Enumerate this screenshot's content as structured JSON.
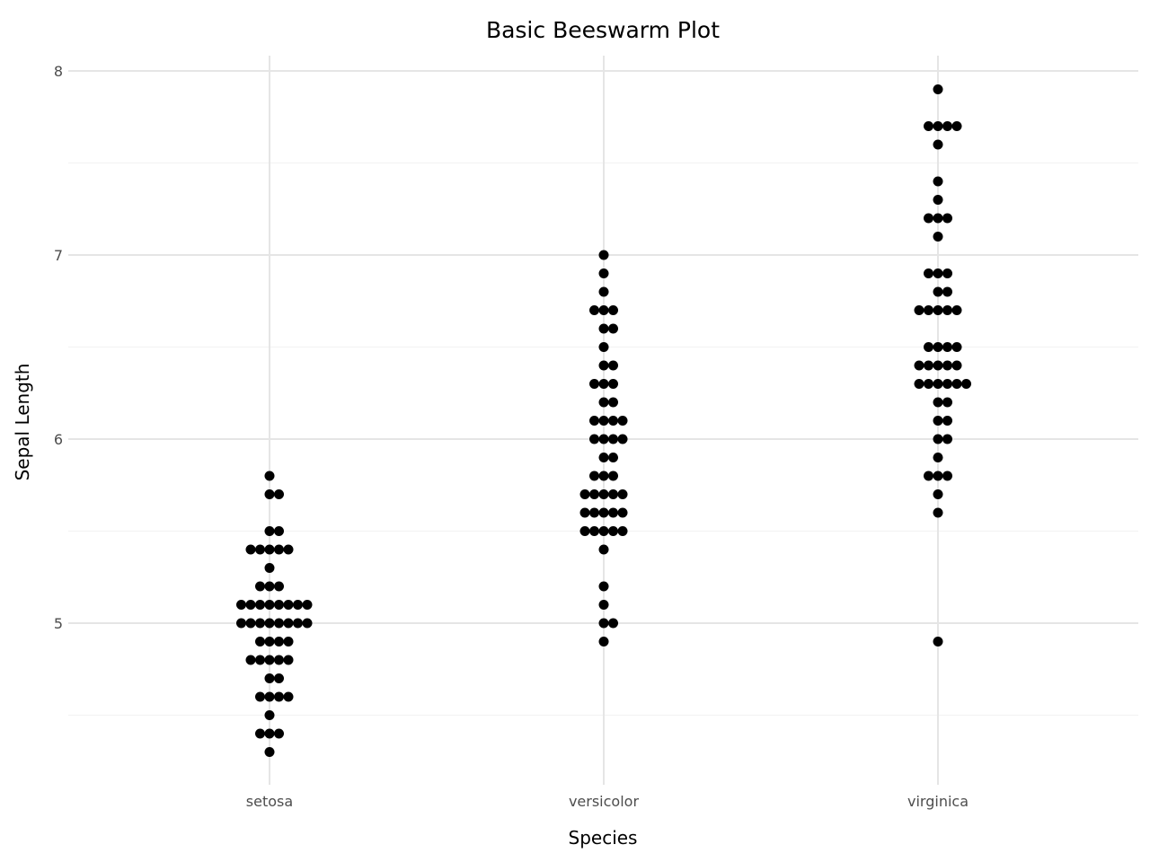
{
  "chart_data": {
    "type": "scatter",
    "subtype": "beeswarm",
    "title": "Basic Beeswarm Plot",
    "xlabel": "Species",
    "ylabel": "Sepal Length",
    "categories": [
      "setosa",
      "versicolor",
      "virginica"
    ],
    "yticks": [
      5,
      6,
      7,
      8
    ],
    "ylim": [
      4.2,
      8.08
    ],
    "grid": true,
    "legend": null,
    "point_color": "#000000",
    "series": [
      {
        "name": "setosa",
        "value_counts": [
          [
            5.8,
            1
          ],
          [
            5.7,
            2
          ],
          [
            5.5,
            2
          ],
          [
            5.4,
            5
          ],
          [
            5.3,
            1
          ],
          [
            5.2,
            3
          ],
          [
            5.1,
            8
          ],
          [
            5.0,
            8
          ],
          [
            4.9,
            4
          ],
          [
            4.8,
            5
          ],
          [
            4.7,
            2
          ],
          [
            4.6,
            4
          ],
          [
            4.5,
            1
          ],
          [
            4.4,
            3
          ],
          [
            4.3,
            1
          ]
        ]
      },
      {
        "name": "versicolor",
        "value_counts": [
          [
            7.0,
            1
          ],
          [
            6.9,
            1
          ],
          [
            6.8,
            1
          ],
          [
            6.7,
            3
          ],
          [
            6.6,
            2
          ],
          [
            6.5,
            1
          ],
          [
            6.4,
            2
          ],
          [
            6.3,
            3
          ],
          [
            6.2,
            2
          ],
          [
            6.1,
            4
          ],
          [
            6.0,
            4
          ],
          [
            5.9,
            2
          ],
          [
            5.8,
            3
          ],
          [
            5.7,
            5
          ],
          [
            5.6,
            5
          ],
          [
            5.5,
            5
          ],
          [
            5.4,
            1
          ],
          [
            5.2,
            1
          ],
          [
            5.1,
            1
          ],
          [
            5.0,
            2
          ],
          [
            4.9,
            1
          ]
        ]
      },
      {
        "name": "virginica",
        "value_counts": [
          [
            7.9,
            1
          ],
          [
            7.7,
            4
          ],
          [
            7.6,
            1
          ],
          [
            7.4,
            1
          ],
          [
            7.3,
            1
          ],
          [
            7.2,
            3
          ],
          [
            7.1,
            1
          ],
          [
            6.9,
            3
          ],
          [
            6.8,
            2
          ],
          [
            6.7,
            5
          ],
          [
            6.5,
            4
          ],
          [
            6.4,
            5
          ],
          [
            6.3,
            6
          ],
          [
            6.2,
            2
          ],
          [
            6.1,
            2
          ],
          [
            6.0,
            2
          ],
          [
            5.9,
            1
          ],
          [
            5.8,
            3
          ],
          [
            5.7,
            1
          ],
          [
            5.6,
            1
          ],
          [
            4.9,
            1
          ]
        ]
      }
    ]
  }
}
